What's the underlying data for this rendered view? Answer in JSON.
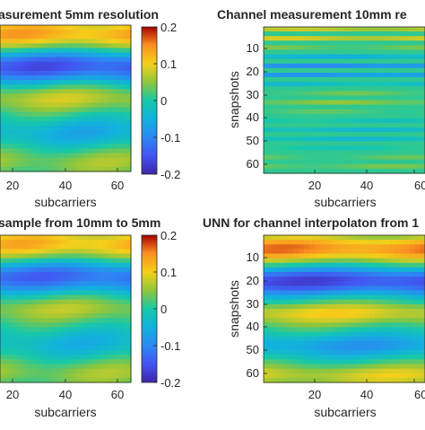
{
  "chart_data": [
    {
      "type": "heatmap",
      "title": "asurement 5mm resolution",
      "xlabel": "subcarriers",
      "ylabel": "",
      "x_ticks": [
        "20",
        "40",
        "60"
      ],
      "y_ticks": [],
      "xlim": [
        1,
        64
      ],
      "ylim": [
        1,
        64
      ],
      "pattern": "smooth",
      "bands": [
        {
          "center": 4,
          "width": 7,
          "amplitude": 0.13
        },
        {
          "center": 18,
          "width": 7,
          "amplitude": -0.15
        },
        {
          "center": 32,
          "width": 6,
          "amplitude": 0.07
        },
        {
          "center": 47,
          "width": 6,
          "amplitude": -0.05
        },
        {
          "center": 60,
          "width": 6,
          "amplitude": 0.05
        }
      ],
      "colorbar": {
        "ticks": [
          "0.2",
          "0.1",
          "0",
          "-0.1",
          "-0.2"
        ],
        "range": [
          -0.2,
          0.2
        ]
      }
    },
    {
      "type": "heatmap",
      "title": "Channel measurement 10mm re",
      "xlabel": "subcarriers",
      "ylabel": "snapshots",
      "x_ticks": [
        "20",
        "40",
        "60"
      ],
      "y_ticks": [
        "10",
        "20",
        "30",
        "40",
        "50",
        "60"
      ],
      "xlim": [
        1,
        64
      ],
      "ylim": [
        1,
        64
      ],
      "pattern": "striped",
      "bands": [
        {
          "center": 4,
          "width": 7,
          "amplitude": 0.13
        },
        {
          "center": 18,
          "width": 7,
          "amplitude": -0.15
        },
        {
          "center": 32,
          "width": 6,
          "amplitude": 0.07
        },
        {
          "center": 47,
          "width": 6,
          "amplitude": -0.05
        },
        {
          "center": 60,
          "width": 6,
          "amplitude": 0.05
        }
      ]
    },
    {
      "type": "heatmap",
      "title": "sample from 10mm to 5mm",
      "xlabel": "subcarriers",
      "ylabel": "",
      "x_ticks": [
        "20",
        "40",
        "60"
      ],
      "y_ticks": [],
      "xlim": [
        1,
        64
      ],
      "ylim": [
        1,
        64
      ],
      "pattern": "smooth",
      "bands": [
        {
          "center": 4,
          "width": 7,
          "amplitude": 0.12
        },
        {
          "center": 18,
          "width": 7,
          "amplitude": -0.13
        },
        {
          "center": 32,
          "width": 6,
          "amplitude": 0.06
        },
        {
          "center": 47,
          "width": 6,
          "amplitude": -0.04
        },
        {
          "center": 60,
          "width": 6,
          "amplitude": 0.05
        }
      ],
      "colorbar": {
        "ticks": [
          "0.2",
          "0.1",
          "0",
          "-0.1",
          "-0.2"
        ],
        "range": [
          -0.2,
          0.2
        ]
      }
    },
    {
      "type": "heatmap",
      "title": "UNN for channel interpolaton from 1",
      "xlabel": "subcarriers",
      "ylabel": "snapshots",
      "x_ticks": [
        "20",
        "40",
        "60"
      ],
      "y_ticks": [
        "10",
        "20",
        "30",
        "40",
        "50",
        "60"
      ],
      "xlim": [
        1,
        64
      ],
      "ylim": [
        1,
        64
      ],
      "pattern": "smooth",
      "bands": [
        {
          "center": 6,
          "width": 6,
          "amplitude": 0.15
        },
        {
          "center": 20,
          "width": 6,
          "amplitude": -0.16
        },
        {
          "center": 34,
          "width": 5,
          "amplitude": 0.09
        },
        {
          "center": 48,
          "width": 5,
          "amplitude": -0.07
        },
        {
          "center": 61,
          "width": 5,
          "amplitude": 0.08
        }
      ]
    }
  ]
}
